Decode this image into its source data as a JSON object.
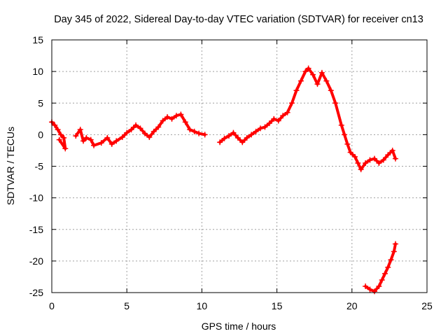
{
  "chart_data": {
    "type": "scatter",
    "title": "Day 345 of 2022, Sidereal Day-to-day VTEC variation (SDTVAR) for receiver cn13",
    "xlabel": "GPS time / hours",
    "ylabel": "SDTVAR / TECUs",
    "xlim": [
      0,
      25
    ],
    "ylim": [
      -25,
      15
    ],
    "xticks": [
      0,
      5,
      10,
      15,
      20,
      25
    ],
    "yticks": [
      15,
      10,
      5,
      0,
      -5,
      -10,
      -15,
      -20,
      -25
    ],
    "grid": true,
    "marker": "+",
    "series_color": "#ff0000",
    "series": [
      {
        "name": "SDTVAR",
        "points": [
          [
            0.0,
            2.0
          ],
          [
            0.2,
            1.5
          ],
          [
            0.4,
            0.8
          ],
          [
            0.6,
            0.0
          ],
          [
            0.8,
            -0.5
          ],
          [
            0.9,
            -2.2
          ],
          [
            0.5,
            -0.8
          ],
          [
            1.6,
            -0.2
          ],
          [
            1.9,
            0.8
          ],
          [
            2.1,
            -1.0
          ],
          [
            2.3,
            -0.5
          ],
          [
            2.6,
            -0.8
          ],
          [
            2.8,
            -1.7
          ],
          [
            3.3,
            -1.3
          ],
          [
            3.7,
            -0.5
          ],
          [
            4.0,
            -1.5
          ],
          [
            4.3,
            -1.0
          ],
          [
            4.7,
            -0.4
          ],
          [
            5.0,
            0.3
          ],
          [
            5.3,
            0.8
          ],
          [
            5.6,
            1.5
          ],
          [
            5.9,
            1.0
          ],
          [
            6.2,
            0.2
          ],
          [
            6.5,
            -0.4
          ],
          [
            6.8,
            0.5
          ],
          [
            7.1,
            1.2
          ],
          [
            7.4,
            2.2
          ],
          [
            7.7,
            2.8
          ],
          [
            8.0,
            2.5
          ],
          [
            8.3,
            3.0
          ],
          [
            8.6,
            3.2
          ],
          [
            8.9,
            2.0
          ],
          [
            9.2,
            0.8
          ],
          [
            9.5,
            0.5
          ],
          [
            9.8,
            0.2
          ],
          [
            10.2,
            0.0
          ],
          [
            11.2,
            -1.2
          ],
          [
            11.5,
            -0.6
          ],
          [
            11.8,
            -0.2
          ],
          [
            12.1,
            0.3
          ],
          [
            12.4,
            -0.5
          ],
          [
            12.7,
            -1.2
          ],
          [
            13.0,
            -0.5
          ],
          [
            13.3,
            0.0
          ],
          [
            13.6,
            0.5
          ],
          [
            13.9,
            1.0
          ],
          [
            14.2,
            1.2
          ],
          [
            14.5,
            1.8
          ],
          [
            14.8,
            2.5
          ],
          [
            15.1,
            2.2
          ],
          [
            15.4,
            3.0
          ],
          [
            15.7,
            3.5
          ],
          [
            16.0,
            5.0
          ],
          [
            16.3,
            7.0
          ],
          [
            16.6,
            8.5
          ],
          [
            16.9,
            10.0
          ],
          [
            17.1,
            10.5
          ],
          [
            17.4,
            9.5
          ],
          [
            17.7,
            8.0
          ],
          [
            18.0,
            9.8
          ],
          [
            18.3,
            8.5
          ],
          [
            18.6,
            7.0
          ],
          [
            18.9,
            5.0
          ],
          [
            19.3,
            1.5
          ],
          [
            19.5,
            0.0
          ],
          [
            19.7,
            -1.5
          ],
          [
            19.9,
            -2.8
          ],
          [
            20.2,
            -3.5
          ],
          [
            20.4,
            -4.5
          ],
          [
            20.6,
            -5.5
          ],
          [
            20.9,
            -4.5
          ],
          [
            21.2,
            -4.0
          ],
          [
            21.5,
            -3.8
          ],
          [
            21.8,
            -4.5
          ],
          [
            22.1,
            -4.0
          ],
          [
            22.4,
            -3.2
          ],
          [
            22.7,
            -2.5
          ],
          [
            22.9,
            -3.8
          ],
          [
            20.9,
            -24.0
          ],
          [
            21.2,
            -24.5
          ],
          [
            21.5,
            -24.8
          ],
          [
            21.8,
            -24.0
          ],
          [
            22.0,
            -23.0
          ],
          [
            22.2,
            -22.0
          ],
          [
            22.4,
            -21.0
          ],
          [
            22.6,
            -19.8
          ],
          [
            22.8,
            -18.5
          ],
          [
            22.9,
            -17.3
          ]
        ]
      }
    ]
  }
}
